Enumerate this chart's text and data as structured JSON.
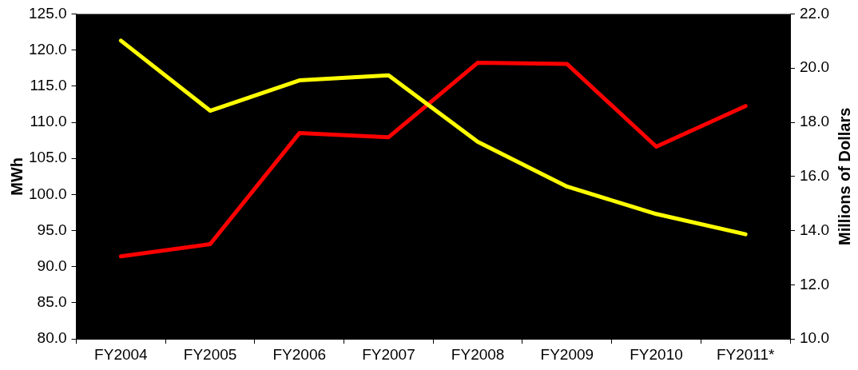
{
  "chart_data": {
    "type": "line",
    "categories": [
      "FY2004",
      "FY2005",
      "FY2006",
      "FY2007",
      "FY2008",
      "FY2009",
      "FY2010",
      "FY2011*"
    ],
    "series": [
      {
        "color": "#ffff00",
        "values": [
          121.3,
          111.6,
          115.8,
          116.5,
          107.3,
          101.1,
          97.3,
          94.5
        ]
      },
      {
        "color": "#ff0000",
        "axis": "y2",
        "values": [
          13.05,
          13.5,
          17.6,
          17.45,
          20.2,
          20.15,
          17.1,
          18.6
        ]
      }
    ],
    "ylabel": "MWh",
    "y2label": "Millions of Dollars",
    "ylim": [
      80,
      125
    ],
    "yticks": [
      {
        "value": 80,
        "label": "80.0"
      },
      {
        "value": 85,
        "label": "85.0"
      },
      {
        "value": 90,
        "label": "90.0"
      },
      {
        "value": 95,
        "label": "95.0"
      },
      {
        "value": 100,
        "label": "100.0"
      },
      {
        "value": 105,
        "label": "105.0"
      },
      {
        "value": 110,
        "label": "110.0"
      },
      {
        "value": 115,
        "label": "115.0"
      },
      {
        "value": 120,
        "label": "120.0"
      },
      {
        "value": 125,
        "label": "125.0"
      }
    ],
    "y2lim": [
      10,
      22
    ],
    "y2ticks": [
      {
        "value": 10,
        "label": "10.0"
      },
      {
        "value": 12,
        "label": "12.0"
      },
      {
        "value": 14,
        "label": "14.0"
      },
      {
        "value": 16,
        "label": "16.0"
      },
      {
        "value": 18,
        "label": "18.0"
      },
      {
        "value": 20,
        "label": "20.0"
      },
      {
        "value": 22,
        "label": "22.0"
      }
    ],
    "grid": false,
    "legend": false,
    "marker": "none",
    "line_style": "solid"
  }
}
